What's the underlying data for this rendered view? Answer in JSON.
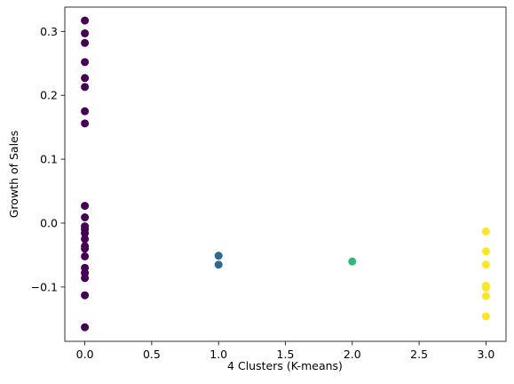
{
  "chart_data": {
    "type": "scatter",
    "title": "",
    "xlabel": "4 Clusters (K-means)",
    "ylabel": "Growth of Sales",
    "xlim": [
      -0.15,
      3.15
    ],
    "ylim": [
      -0.185,
      0.338
    ],
    "xticks": [
      0.0,
      0.5,
      1.0,
      1.5,
      2.0,
      2.5,
      3.0
    ],
    "xtick_labels": [
      "0.0",
      "0.5",
      "1.0",
      "1.5",
      "2.0",
      "2.5",
      "3.0"
    ],
    "yticks": [
      -0.1,
      0.0,
      0.1,
      0.2,
      0.3
    ],
    "ytick_labels": [
      "−0.1",
      "0.0",
      "0.1",
      "0.2",
      "0.3"
    ],
    "grid": false,
    "legend": "none",
    "colormap": "viridis",
    "series": [
      {
        "cluster": 0,
        "color": "#440154",
        "points": [
          [
            0,
            0.317
          ],
          [
            0,
            0.297
          ],
          [
            0,
            0.282
          ],
          [
            0,
            0.252
          ],
          [
            0,
            0.227
          ],
          [
            0,
            0.213
          ],
          [
            0,
            0.175
          ],
          [
            0,
            0.156
          ],
          [
            0,
            0.027
          ],
          [
            0,
            0.009
          ],
          [
            0,
            -0.005
          ],
          [
            0,
            -0.01
          ],
          [
            0,
            -0.016
          ],
          [
            0,
            -0.025
          ],
          [
            0,
            -0.036
          ],
          [
            0,
            -0.04
          ],
          [
            0,
            -0.052
          ],
          [
            0,
            -0.07
          ],
          [
            0,
            -0.078
          ],
          [
            0,
            -0.086
          ],
          [
            0,
            -0.113
          ],
          [
            0,
            -0.163
          ]
        ]
      },
      {
        "cluster": 1,
        "color": "#31688e",
        "points": [
          [
            1,
            -0.051
          ],
          [
            1,
            -0.065
          ]
        ]
      },
      {
        "cluster": 2,
        "color": "#35b779",
        "points": [
          [
            2,
            -0.06
          ]
        ]
      },
      {
        "cluster": 3,
        "color": "#fde725",
        "points": [
          [
            3,
            -0.013
          ],
          [
            3,
            -0.044
          ],
          [
            3,
            -0.065
          ],
          [
            3,
            -0.098
          ],
          [
            3,
            -0.101
          ],
          [
            3,
            -0.114
          ],
          [
            3,
            -0.146
          ]
        ]
      }
    ]
  }
}
